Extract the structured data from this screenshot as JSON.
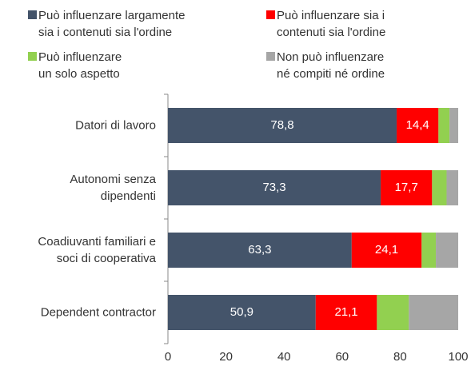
{
  "chart_data": {
    "type": "stacked-bar-horizontal",
    "categories": [
      "Datori di lavoro",
      "Autonomi senza\ndipendenti",
      "Coadiuvanti familiari e\nsoci di cooperativa",
      "Dependent contractor"
    ],
    "series": [
      {
        "name": "Può influenzare largamente\nsia i contenuti sia l'ordine",
        "color": "#44546a",
        "values": [
          78.8,
          73.3,
          63.3,
          50.9
        ],
        "value_labels": [
          "78,8",
          "73,3",
          "63,3",
          "50,9"
        ]
      },
      {
        "name": "Può influenzare sia i\ncontenuti sia l'ordine",
        "color": "#ff0000",
        "values": [
          14.4,
          17.7,
          24.1,
          21.1
        ],
        "value_labels": [
          "14,4",
          "17,7",
          "24,1",
          "21,1"
        ]
      },
      {
        "name": "Può influenzare\nun solo aspetto",
        "color": "#92d050",
        "values": [
          3.8,
          5.0,
          4.9,
          11.0
        ]
      },
      {
        "name": "Non può influenzare\nné compiti né ordine",
        "color": "#a6a6a6",
        "values": [
          3.0,
          4.0,
          7.7,
          17.0
        ]
      }
    ],
    "xlim": [
      0,
      100
    ],
    "xticks": [
      0,
      20,
      40,
      60,
      80,
      100
    ],
    "grid": false
  }
}
